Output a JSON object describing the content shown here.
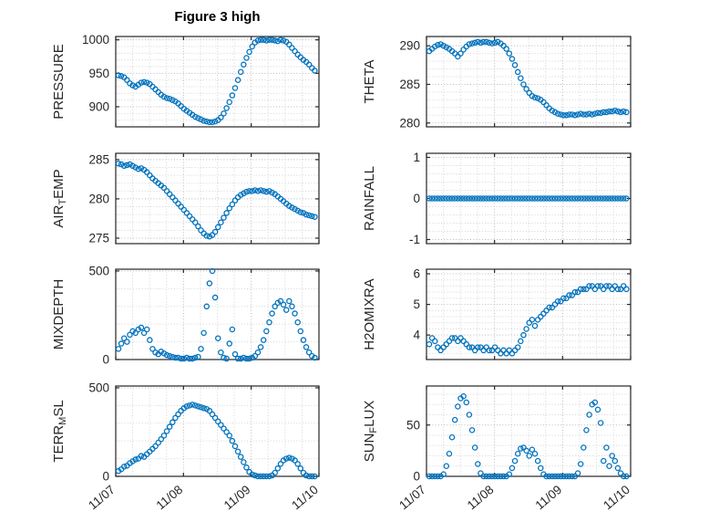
{
  "chart_data": {
    "type": "scatter",
    "figure_title": "Figure 3 high",
    "marker_color": "#0072BD",
    "axis_text_color": "#262626",
    "grid": "on",
    "x": {
      "start": 0.04,
      "step": 0.042,
      "lim": [
        0,
        3
      ],
      "ticks": [
        0,
        1,
        2,
        3
      ],
      "tick_labels": [
        "11/07",
        "11/08",
        "11/09",
        "11/10"
      ]
    },
    "charts": [
      {
        "name": "PRESSURE",
        "ylabel": "PRESSURE",
        "ylabel_parts": [
          "PRESSURE",
          "",
          ""
        ],
        "row": 0,
        "col": 0,
        "ylim": [
          870,
          1005
        ],
        "yticks": [
          900,
          950,
          1000
        ],
        "show_x_labels": false,
        "values": [
          947,
          946,
          944,
          940,
          935,
          932,
          930,
          933,
          936,
          937,
          936,
          934,
          930,
          926,
          922,
          918,
          915,
          913,
          912,
          910,
          908,
          905,
          901,
          897,
          894,
          891,
          888,
          885,
          883,
          881,
          879,
          878,
          877,
          877,
          878,
          880,
          884,
          890,
          898,
          907,
          917,
          928,
          940,
          952,
          963,
          973,
          982,
          990,
          996,
          999,
          1000,
          1000,
          999,
          1000,
          1000,
          999,
          998,
          1000,
          999,
          997,
          993,
          988,
          983,
          978,
          974,
          970,
          967,
          963,
          958,
          954
        ]
      },
      {
        "name": "THETA",
        "ylabel": "THETA",
        "ylabel_parts": [
          "THETA",
          "",
          ""
        ],
        "row": 0,
        "col": 1,
        "ylim": [
          279.5,
          291.2
        ],
        "yticks": [
          280,
          285,
          290
        ],
        "show_x_labels": false,
        "values": [
          289.3,
          289.6,
          289.9,
          290.1,
          290.2,
          290.0,
          289.8,
          289.6,
          289.3,
          289.0,
          288.6,
          289.0,
          289.5,
          289.9,
          290.2,
          290.3,
          290.4,
          290.5,
          290.4,
          290.5,
          290.5,
          290.4,
          290.3,
          290.4,
          290.5,
          290.3,
          290.0,
          289.6,
          289.0,
          288.3,
          287.5,
          286.6,
          285.8,
          285.0,
          284.4,
          283.9,
          283.5,
          283.3,
          283.2,
          283.0,
          282.7,
          282.3,
          281.9,
          281.6,
          281.4,
          281.2,
          281.1,
          281.0,
          281.0,
          281.1,
          281.1,
          281.0,
          281.1,
          281.2,
          281.1,
          281.1,
          281.2,
          281.1,
          281.2,
          281.3,
          281.3,
          281.4,
          281.4,
          281.5,
          281.5,
          281.6,
          281.5,
          281.4,
          281.5,
          281.4
        ]
      },
      {
        "name": "AIR_TEMP",
        "ylabel": "AIR_TEMP",
        "ylabel_parts": [
          "AIR",
          "T",
          "EMP"
        ],
        "row": 1,
        "col": 0,
        "ylim": [
          274.3,
          285.8
        ],
        "yticks": [
          275,
          280,
          285
        ],
        "show_x_labels": false,
        "values": [
          284.5,
          284.4,
          284.2,
          284.3,
          284.4,
          284.2,
          284.0,
          283.8,
          283.9,
          283.7,
          283.4,
          283.0,
          282.6,
          282.3,
          282.0,
          281.7,
          281.4,
          281.0,
          280.6,
          280.2,
          279.8,
          279.4,
          279.0,
          278.6,
          278.2,
          277.8,
          277.4,
          277.0,
          276.5,
          276.0,
          275.6,
          275.3,
          275.2,
          275.4,
          275.8,
          276.4,
          277.0,
          277.6,
          278.2,
          278.8,
          279.3,
          279.8,
          280.2,
          280.5,
          280.7,
          280.9,
          281.0,
          281.0,
          281.1,
          281.0,
          281.1,
          281.0,
          280.9,
          281.0,
          280.8,
          280.6,
          280.3,
          280.0,
          279.7,
          279.4,
          279.1,
          278.9,
          278.7,
          278.5,
          278.3,
          278.2,
          278.0,
          277.9,
          277.8,
          277.7
        ]
      },
      {
        "name": "RAINFALL",
        "ylabel": "RAINFALL",
        "ylabel_parts": [
          "RAINFALL",
          "",
          ""
        ],
        "row": 1,
        "col": 1,
        "ylim": [
          -1.1,
          1.1
        ],
        "yticks": [
          -1,
          0,
          1
        ],
        "show_x_labels": false,
        "values": [
          0,
          0,
          0,
          0,
          0,
          0,
          0,
          0,
          0,
          0,
          0,
          0,
          0,
          0,
          0,
          0,
          0,
          0,
          0,
          0,
          0,
          0,
          0,
          0,
          0,
          0,
          0,
          0,
          0,
          0,
          0,
          0,
          0,
          0,
          0,
          0,
          0,
          0,
          0,
          0,
          0,
          0,
          0,
          0,
          0,
          0,
          0,
          0,
          0,
          0,
          0,
          0,
          0,
          0,
          0,
          0,
          0,
          0,
          0,
          0,
          0,
          0,
          0,
          0,
          0,
          0,
          0,
          0,
          0,
          0
        ]
      },
      {
        "name": "MIXDEPTH",
        "ylabel": "MIXDEPTH",
        "ylabel_parts": [
          "MIXDEPTH",
          "",
          ""
        ],
        "row": 2,
        "col": 0,
        "ylim": [
          0,
          510
        ],
        "yticks": [
          0,
          500
        ],
        "show_x_labels": false,
        "values": [
          60,
          90,
          120,
          100,
          140,
          160,
          150,
          170,
          180,
          150,
          170,
          110,
          60,
          40,
          30,
          45,
          35,
          25,
          20,
          15,
          10,
          10,
          5,
          5,
          10,
          5,
          5,
          10,
          15,
          60,
          150,
          300,
          430,
          500,
          350,
          120,
          40,
          10,
          5,
          90,
          170,
          30,
          5,
          5,
          10,
          5,
          5,
          10,
          20,
          40,
          70,
          110,
          160,
          210,
          260,
          300,
          320,
          330,
          310,
          280,
          330,
          300,
          260,
          210,
          160,
          110,
          70,
          40,
          20,
          10
        ]
      },
      {
        "name": "H2OMIXRA",
        "ylabel": "H2OMIXRA",
        "ylabel_parts": [
          "H2OMIXRA",
          "",
          ""
        ],
        "row": 2,
        "col": 1,
        "ylim": [
          3.2,
          6.15
        ],
        "yticks": [
          4,
          5,
          6
        ],
        "show_x_labels": false,
        "values": [
          3.7,
          3.9,
          3.8,
          3.6,
          3.5,
          3.6,
          3.7,
          3.8,
          3.9,
          3.9,
          3.8,
          3.9,
          3.8,
          3.7,
          3.6,
          3.6,
          3.5,
          3.6,
          3.6,
          3.5,
          3.6,
          3.5,
          3.5,
          3.6,
          3.5,
          3.4,
          3.5,
          3.4,
          3.5,
          3.4,
          3.5,
          3.6,
          3.8,
          4.0,
          4.2,
          4.4,
          4.5,
          4.3,
          4.5,
          4.6,
          4.7,
          4.8,
          4.9,
          4.9,
          5.0,
          5.1,
          5.1,
          5.2,
          5.2,
          5.3,
          5.3,
          5.4,
          5.4,
          5.5,
          5.5,
          5.5,
          5.6,
          5.6,
          5.5,
          5.6,
          5.6,
          5.5,
          5.6,
          5.6,
          5.5,
          5.6,
          5.5,
          5.5,
          5.6,
          5.5
        ]
      },
      {
        "name": "TERR_MSL",
        "ylabel": "TERR_MSL",
        "ylabel_parts": [
          "TERR",
          "M",
          "SL"
        ],
        "row": 3,
        "col": 0,
        "ylim": [
          0,
          510
        ],
        "yticks": [
          0,
          500
        ],
        "show_x_labels": true,
        "values": [
          30,
          40,
          55,
          60,
          75,
          85,
          95,
          100,
          115,
          110,
          125,
          140,
          155,
          170,
          190,
          210,
          230,
          255,
          280,
          305,
          330,
          350,
          370,
          385,
          395,
          400,
          405,
          400,
          395,
          390,
          385,
          380,
          370,
          350,
          330,
          310,
          290,
          270,
          250,
          230,
          200,
          170,
          140,
          110,
          80,
          50,
          25,
          10,
          5,
          0,
          0,
          0,
          0,
          0,
          5,
          20,
          45,
          70,
          90,
          100,
          105,
          100,
          90,
          70,
          45,
          20,
          5,
          0,
          0,
          0
        ]
      },
      {
        "name": "SUN_FLUX",
        "ylabel": "SUN_FLUX",
        "ylabel_parts": [
          "SUN",
          "F",
          "LUX"
        ],
        "row": 3,
        "col": 1,
        "ylim": [
          0,
          88
        ],
        "yticks": [
          0,
          50
        ],
        "show_x_labels": true,
        "values": [
          0,
          0,
          0,
          0,
          0,
          2,
          10,
          22,
          38,
          55,
          68,
          76,
          78,
          72,
          60,
          45,
          28,
          12,
          3,
          0,
          0,
          0,
          0,
          0,
          0,
          0,
          0,
          0,
          2,
          8,
          15,
          22,
          27,
          28,
          25,
          20,
          26,
          22,
          15,
          8,
          2,
          0,
          0,
          0,
          0,
          0,
          0,
          0,
          0,
          0,
          0,
          0,
          3,
          12,
          28,
          45,
          60,
          70,
          72,
          65,
          52,
          15,
          28,
          10,
          20,
          15,
          8,
          3,
          0,
          0
        ]
      }
    ]
  }
}
